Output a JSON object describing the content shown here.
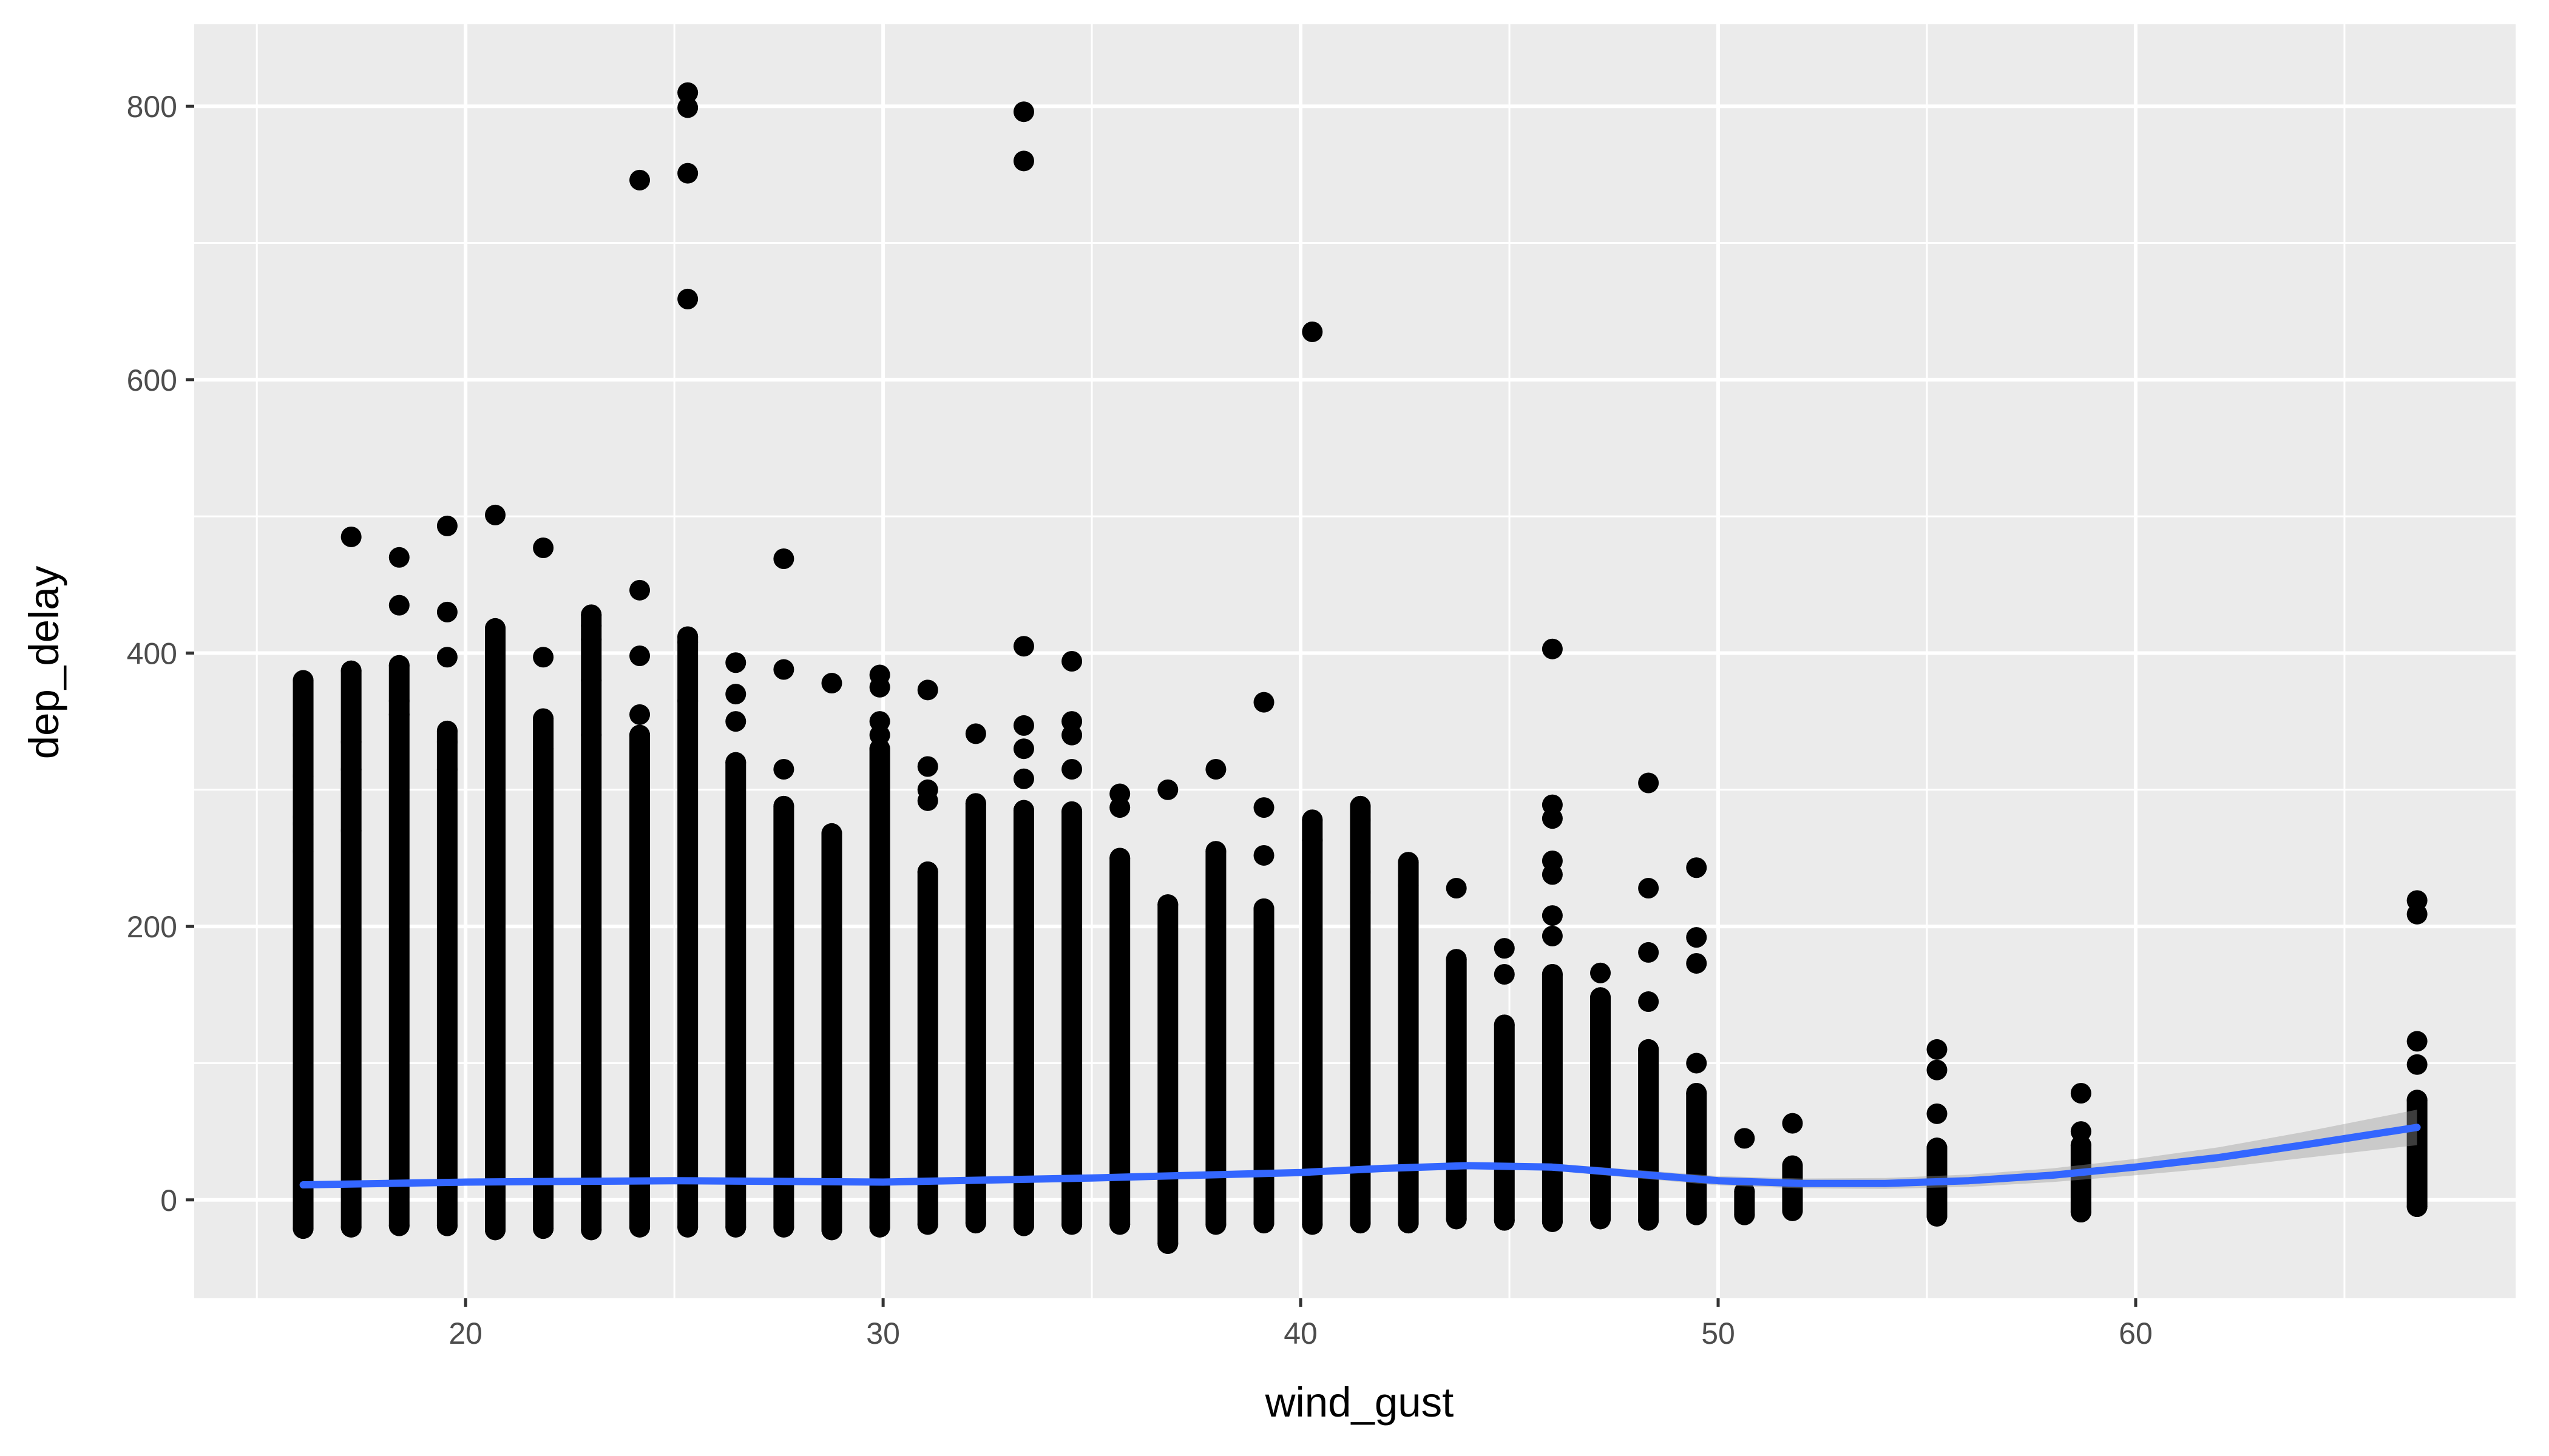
{
  "chart_data": {
    "type": "scatter",
    "title": "",
    "xlabel": "wind_gust",
    "ylabel": "dep_delay",
    "xlim": [
      13.5,
      69.1
    ],
    "ylim": [
      -72,
      860
    ],
    "x_ticks": [
      20,
      30,
      40,
      50,
      60
    ],
    "y_ticks": [
      0,
      200,
      400,
      600,
      800
    ],
    "grid": true,
    "legend": "none",
    "colors": {
      "panel_background": "#ebebeb",
      "grid_major": "#ffffff",
      "points": "#000000",
      "smooth_line": "#3366ff",
      "confidence_band": "#999999"
    },
    "columns": [
      {
        "x": 16.11,
        "lo": -21,
        "hi": 380,
        "extra": [
          340,
          310,
          280,
          275,
          255
        ]
      },
      {
        "x": 17.26,
        "lo": -20,
        "hi": 387,
        "extra": [
          485,
          335,
          315,
          300,
          270
        ]
      },
      {
        "x": 18.41,
        "lo": -19,
        "hi": 391,
        "extra": [
          470,
          435,
          365,
          355
        ]
      },
      {
        "x": 19.56,
        "lo": -19,
        "hi": 343,
        "extra": [
          493,
          430,
          397,
          335,
          315
        ]
      },
      {
        "x": 20.71,
        "lo": -22,
        "hi": 418,
        "extra": [
          501,
          400,
          385,
          365
        ]
      },
      {
        "x": 21.86,
        "lo": -21,
        "hi": 352,
        "extra": [
          477,
          397,
          330,
          300
        ]
      },
      {
        "x": 23.01,
        "lo": -22,
        "hi": 428,
        "extra": [
          420,
          410,
          380,
          340
        ]
      },
      {
        "x": 24.17,
        "lo": -20,
        "hi": 340,
        "extra": [
          746,
          446,
          398,
          355
        ]
      },
      {
        "x": 25.32,
        "lo": -20,
        "hi": 412,
        "extra": [
          810,
          799,
          751,
          659,
          408,
          365
        ]
      },
      {
        "x": 26.47,
        "lo": -20,
        "hi": 320,
        "extra": [
          393,
          370,
          350
        ]
      },
      {
        "x": 27.62,
        "lo": -20,
        "hi": 288,
        "extra": [
          469,
          388,
          315
        ]
      },
      {
        "x": 28.77,
        "lo": -22,
        "hi": 268,
        "extra": [
          378
        ]
      },
      {
        "x": 29.92,
        "lo": -20,
        "hi": 330,
        "extra": [
          384,
          375,
          350,
          340
        ]
      },
      {
        "x": 31.07,
        "lo": -18,
        "hi": 240,
        "extra": [
          373,
          317,
          300,
          292
        ]
      },
      {
        "x": 32.22,
        "lo": -17,
        "hi": 290,
        "extra": [
          341
        ]
      },
      {
        "x": 33.37,
        "lo": -19,
        "hi": 285,
        "extra": [
          796,
          760,
          405,
          347,
          330,
          308
        ]
      },
      {
        "x": 34.52,
        "lo": -18,
        "hi": 284,
        "extra": [
          394,
          350,
          340,
          315
        ]
      },
      {
        "x": 35.67,
        "lo": -18,
        "hi": 250,
        "extra": [
          297,
          287
        ]
      },
      {
        "x": 36.82,
        "lo": -32,
        "hi": 216,
        "extra": [
          300
        ]
      },
      {
        "x": 37.97,
        "lo": -18,
        "hi": 255,
        "extra": [
          315
        ]
      },
      {
        "x": 39.12,
        "lo": -17,
        "hi": 213,
        "extra": [
          364,
          287,
          252
        ]
      },
      {
        "x": 40.28,
        "lo": -18,
        "hi": 278,
        "extra": [
          635,
          263
        ]
      },
      {
        "x": 41.43,
        "lo": -17,
        "hi": 288,
        "extra": [
          278,
          240,
          225
        ]
      },
      {
        "x": 42.58,
        "lo": -17,
        "hi": 247,
        "extra": [
          230
        ]
      },
      {
        "x": 43.73,
        "lo": -14,
        "hi": 176,
        "extra": [
          228
        ]
      },
      {
        "x": 44.88,
        "lo": -15,
        "hi": 128,
        "extra": [
          184,
          165
        ]
      },
      {
        "x": 46.03,
        "lo": -16,
        "hi": 165,
        "extra": [
          403,
          289,
          279,
          248,
          238,
          208,
          193
        ]
      },
      {
        "x": 47.18,
        "lo": -14,
        "hi": 148,
        "extra": [
          166
        ]
      },
      {
        "x": 48.33,
        "lo": -15,
        "hi": 110,
        "extra": [
          305,
          228,
          181,
          145
        ]
      },
      {
        "x": 49.48,
        "lo": -11,
        "hi": 78,
        "extra": [
          243,
          192,
          173,
          100
        ]
      },
      {
        "x": 50.63,
        "lo": -11,
        "hi": 6,
        "extra": [
          45
        ]
      },
      {
        "x": 51.78,
        "lo": -8,
        "hi": 25,
        "extra": [
          56
        ]
      },
      {
        "x": 55.24,
        "lo": -12,
        "hi": 38,
        "extra": [
          110,
          95,
          63
        ]
      },
      {
        "x": 58.69,
        "lo": -9,
        "hi": 40,
        "extra": [
          78,
          50
        ]
      },
      {
        "x": 66.74,
        "lo": -5,
        "hi": 73,
        "extra": [
          219,
          209,
          116,
          99
        ]
      }
    ],
    "smooth": {
      "x": [
        16.11,
        20,
        25,
        30,
        35,
        40,
        42,
        44,
        46,
        48,
        50,
        52,
        54,
        56,
        58,
        60,
        62,
        64,
        66.74
      ],
      "y": [
        11,
        13,
        14,
        13,
        16,
        20,
        23,
        25,
        24,
        19,
        14,
        12,
        12,
        14,
        18,
        24,
        31,
        40,
        53
      ],
      "band": [
        1.5,
        1.2,
        1,
        1,
        1.2,
        1.5,
        2,
        2.2,
        2.6,
        3,
        3.4,
        3.6,
        4,
        4.5,
        5,
        6,
        7.5,
        9.5,
        13
      ]
    }
  }
}
